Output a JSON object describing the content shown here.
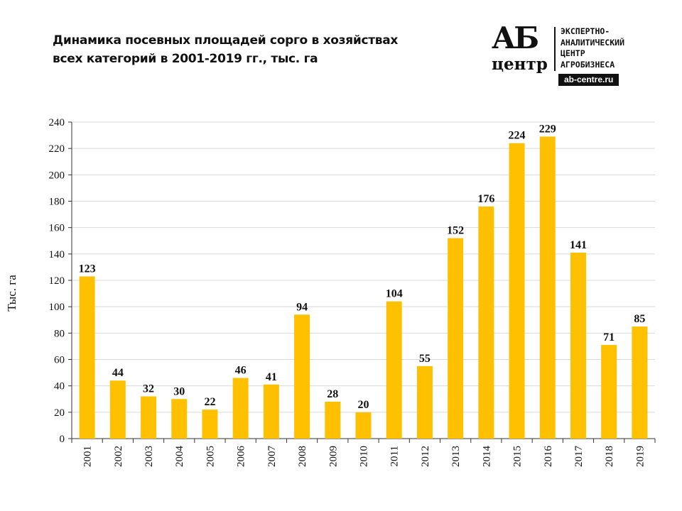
{
  "title_line1": "Динамика посевных площадей сорго в хозяйствах",
  "title_line2": "всех категорий в 2001-2019 гг., тыс. га",
  "logo": {
    "mark": "АБ",
    "sub": "центр",
    "name_lines": [
      "ЭКСПЕРТНО-",
      "АНАЛИТИЧЕСКИЙ",
      "ЦЕНТР",
      "АГРОБИЗНЕСА"
    ],
    "url": "ab-centre.ru"
  },
  "chart_data": {
    "type": "bar",
    "title": "Динамика посевных площадей сорго в хозяйствах всех категорий в 2001-2019 гг., тыс. га",
    "xlabel": "",
    "ylabel": "Тыс. га",
    "categories": [
      "2001",
      "2002",
      "2003",
      "2004",
      "2005",
      "2006",
      "2007",
      "2008",
      "2009",
      "2010",
      "2011",
      "2012",
      "2013",
      "2014",
      "2015",
      "2016",
      "2017",
      "2018",
      "2019"
    ],
    "values": [
      123,
      44,
      32,
      30,
      22,
      46,
      41,
      94,
      28,
      20,
      104,
      55,
      152,
      176,
      224,
      229,
      141,
      71,
      85
    ],
    "ylim": [
      0,
      240
    ],
    "yticks": [
      0,
      20,
      40,
      60,
      80,
      100,
      120,
      140,
      160,
      180,
      200,
      220,
      240
    ],
    "grid": true,
    "bar_color": "#FFC000",
    "data_labels": true
  }
}
